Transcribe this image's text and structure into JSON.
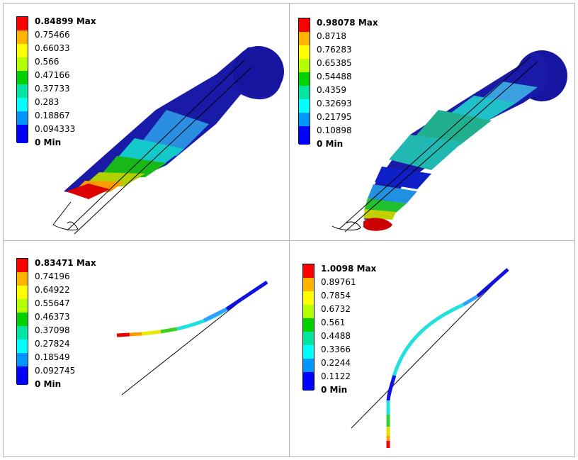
{
  "colors": {
    "levels": [
      "#0000ff",
      "#0090ff",
      "#00e5ff",
      "#00ffb4",
      "#00d200",
      "#8cff00",
      "#ffff00",
      "#ffb400",
      "#ff0000"
    ],
    "dark_blue": "#1a1aa8",
    "outline": "#000000",
    "panel_border": "#b4b4b4"
  },
  "panels": {
    "top_left": {
      "legend": {
        "max_value": "0.84899",
        "max_suffix": "Max",
        "mid_values": [
          "0.75466",
          "0.66033",
          "0.566",
          "0.47166",
          "0.37733",
          "0.283",
          "0.18867",
          "0.094333"
        ],
        "min_value": "0",
        "min_suffix": "Min"
      }
    },
    "top_right": {
      "legend": {
        "max_value": "0.98078",
        "max_suffix": "Max",
        "mid_values": [
          "0.8718",
          "0.76283",
          "0.65385",
          "0.54488",
          "0.4359",
          "0.32693",
          "0.21795",
          "0.10898"
        ],
        "min_value": "0",
        "min_suffix": "Min"
      }
    },
    "bottom_left": {
      "legend": {
        "max_value": "0.83471",
        "max_suffix": "Max",
        "mid_values": [
          "0.74196",
          "0.64922",
          "0.55647",
          "0.46373",
          "0.37098",
          "0.27824",
          "0.18549",
          "0.092745"
        ],
        "min_value": "0",
        "min_suffix": "Min"
      }
    },
    "bottom_right": {
      "legend": {
        "max_value": "1.0098",
        "max_suffix": "Max",
        "mid_values": [
          "0.89761",
          "0.7854",
          "0.6732",
          "0.561",
          "0.4488",
          "0.3366",
          "0.2244",
          "0.1122"
        ],
        "min_value": "0",
        "min_suffix": "Min"
      }
    }
  }
}
